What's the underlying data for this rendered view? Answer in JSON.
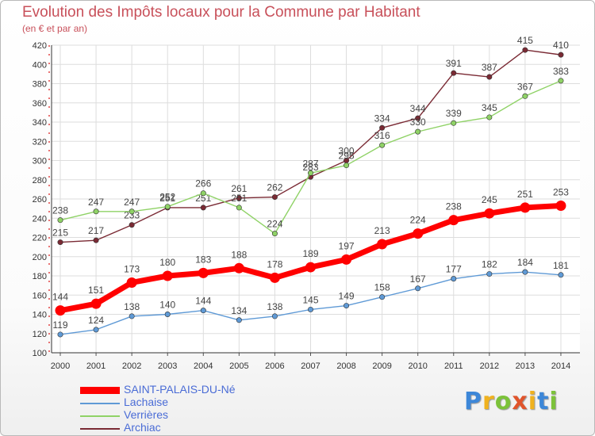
{
  "header": {
    "title": "Evolution des Impôts locaux pour la Commune par Habitant",
    "subtitle": "(en € et par an)"
  },
  "chart_data": {
    "type": "line",
    "title": "Evolution des Impôts locaux pour la Commune par Habitant",
    "subtitle": "(en € et par an)",
    "xlabel": "",
    "ylabel": "",
    "ylim": [
      100,
      420
    ],
    "yticks": [
      100,
      120,
      140,
      160,
      180,
      200,
      220,
      240,
      260,
      280,
      300,
      320,
      340,
      360,
      380,
      400,
      420
    ],
    "grid": true,
    "legend_position": "bottom-left",
    "categories": [
      "2000",
      "2001",
      "2002",
      "2003",
      "2004",
      "2005",
      "2006",
      "2007",
      "2008",
      "2009",
      "2010",
      "2011",
      "2012",
      "2013",
      "2014"
    ],
    "series": [
      {
        "name": "Archiac",
        "color": "#7a2a34",
        "values": [
          215,
          217,
          233,
          251,
          251,
          261,
          262,
          283,
          300,
          334,
          344,
          391,
          387,
          415,
          410
        ]
      },
      {
        "name": "Verrières",
        "color": "#8fd266",
        "values": [
          238,
          247,
          247,
          252,
          266,
          251,
          224,
          287,
          295,
          316,
          330,
          339,
          345,
          367,
          383
        ]
      },
      {
        "name": "Lachaise",
        "color": "#5f9ad6",
        "values": [
          119,
          124,
          138,
          140,
          144,
          134,
          138,
          145,
          149,
          158,
          167,
          177,
          182,
          184,
          181
        ]
      },
      {
        "name": "SAINT-PALAIS-DU-Né",
        "color": "#ff0000",
        "values": [
          144,
          151,
          173,
          180,
          183,
          188,
          178,
          189,
          197,
          213,
          224,
          238,
          245,
          251,
          253
        ]
      }
    ]
  },
  "legend": {
    "items": [
      {
        "label": "SAINT-PALAIS-DU-Né",
        "color": "#ff0000"
      },
      {
        "label": "Lachaise",
        "color": "#5f9ad6"
      },
      {
        "label": "Verrières",
        "color": "#8fd266"
      },
      {
        "label": "Archiac",
        "color": "#7a2a34"
      }
    ]
  },
  "logo": {
    "letters": [
      "P",
      "r",
      "o",
      "x",
      "i",
      "t",
      "i"
    ],
    "colors": [
      "#3d87d8",
      "#f0b21f",
      "#7cc23a",
      "#e0542b",
      "#f0b21f",
      "#3d87d8",
      "#7cc23a"
    ]
  }
}
